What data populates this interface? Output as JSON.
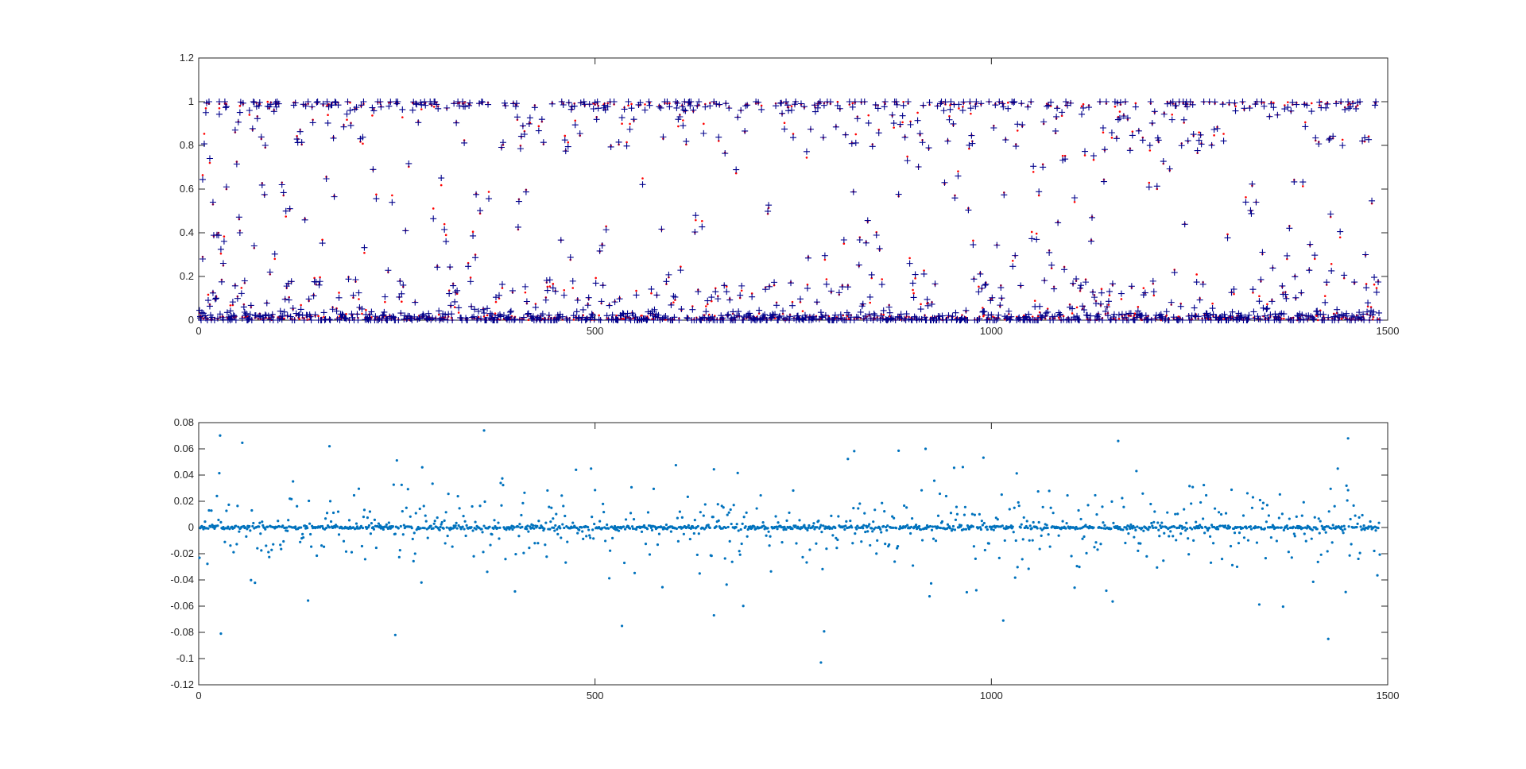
{
  "chart_data": [
    {
      "type": "scatter",
      "title": "",
      "xlabel": "",
      "ylabel": "",
      "xlim": [
        0,
        1500
      ],
      "ylim": [
        0,
        1.2
      ],
      "xticks": [
        0,
        500,
        1000,
        1500
      ],
      "xtick_labels": [
        "0",
        "500",
        "1000",
        "1500"
      ],
      "yticks": [
        0,
        0.2,
        0.4,
        0.6,
        0.8,
        1,
        1.2
      ],
      "ytick_labels": [
        "0",
        "0.2",
        "0.4",
        "0.6",
        "0.8",
        "1",
        "1.2"
      ],
      "grid": false,
      "legend": "none",
      "n_points": 1490,
      "series": [
        {
          "marker": "dot",
          "color": "#ff0000",
          "values_description": ""
        },
        {
          "marker": "plus",
          "color": "#00008b",
          "values_description": ""
        }
      ],
      "sample_points": [
        [
          2,
          0.02,
          0.01
        ],
        [
          5,
          0.29,
          0.28
        ],
        [
          9,
          0.97,
          0.95
        ],
        [
          14,
          0.72,
          0.74
        ],
        [
          18,
          0.53,
          0.54
        ],
        [
          22,
          0.11,
          0.1
        ],
        [
          26,
          0.99,
          1.0
        ],
        [
          31,
          0.25,
          0.26
        ],
        [
          35,
          0.6,
          0.61
        ],
        [
          40,
          0.01,
          0.0
        ],
        [
          46,
          0.86,
          0.87
        ],
        [
          52,
          0.41,
          0.4
        ],
        [
          58,
          0.17,
          0.18
        ],
        [
          64,
          0.94,
          0.96
        ],
        [
          70,
          0.33,
          0.34
        ],
        [
          77,
          0.03,
          0.02
        ],
        [
          84,
          0.79,
          0.8
        ],
        [
          90,
          0.21,
          0.22
        ],
        [
          97,
          0.99,
          0.99
        ],
        [
          105,
          0.63,
          0.62
        ]
      ]
    },
    {
      "type": "scatter",
      "title": "",
      "xlabel": "",
      "ylabel": "",
      "xlim": [
        0,
        1500
      ],
      "ylim": [
        -0.12,
        0.08
      ],
      "xticks": [
        0,
        500,
        1000,
        1500
      ],
      "xtick_labels": [
        "0",
        "500",
        "1000",
        "1500"
      ],
      "yticks": [
        -0.12,
        -0.1,
        -0.08,
        -0.06,
        -0.04,
        -0.02,
        0,
        0.02,
        0.04,
        0.06,
        0.08
      ],
      "ytick_labels": [
        "-0.12",
        "-0.1",
        "-0.08",
        "-0.06",
        "-0.04",
        "-0.02",
        "0",
        "0.02",
        "0.04",
        "0.06",
        "0.08"
      ],
      "grid": false,
      "legend": "none",
      "n_points": 1490,
      "series": [
        {
          "marker": "dot",
          "color": "#0072bd"
        }
      ],
      "notable_points": [
        [
          28,
          -0.081
        ],
        [
          360,
          0.074
        ],
        [
          785,
          -0.103
        ],
        [
          1425,
          -0.085
        ],
        [
          1450,
          0.068
        ],
        [
          165,
          0.062
        ],
        [
          650,
          -0.067
        ],
        [
          1160,
          0.066
        ],
        [
          248,
          -0.082
        ],
        [
          917,
          0.06
        ]
      ]
    }
  ],
  "colors": {
    "axes": "#262626",
    "series_red": "#ff0000",
    "series_plus": "#00008b",
    "series_blue": "#0072bd"
  }
}
